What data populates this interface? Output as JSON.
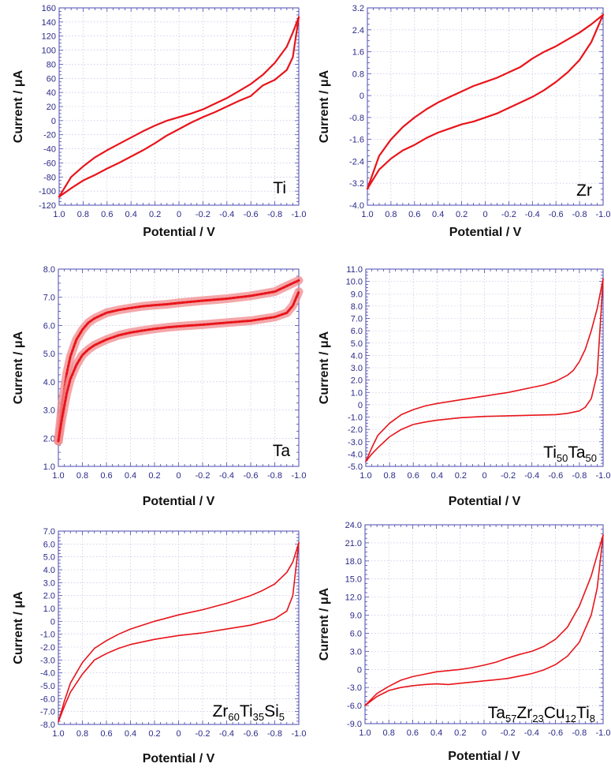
{
  "chart_data": [
    {
      "type": "line",
      "panel_label": "Ti",
      "xlabel": "Potential / V",
      "ylabel": "Current / μA",
      "xlim": [
        1.0,
        -1.0
      ],
      "ylim": [
        -120,
        160
      ],
      "x_ticks": [
        "1.0",
        "0.8",
        "0.6",
        "0.4",
        "0.2",
        "0",
        "-0.2",
        "-0.4",
        "-0.6",
        "-0.8",
        "-1.0"
      ],
      "y_ticks": [
        "-120",
        "-100",
        "-80",
        "-60",
        "-40",
        "-20",
        "0",
        "20",
        "40",
        "60",
        "80",
        "100",
        "120",
        "140",
        "160"
      ],
      "grid": true,
      "series": [
        {
          "x": [
            1.0,
            0.9,
            0.8,
            0.7,
            0.6,
            0.5,
            0.4,
            0.3,
            0.2,
            0.1,
            0.0,
            -0.1,
            -0.2,
            -0.3,
            -0.4,
            -0.5,
            -0.6,
            -0.7,
            -0.8,
            -0.9,
            -0.95,
            -1.0
          ],
          "y": [
            -108,
            -80,
            -65,
            -52,
            -42,
            -33,
            -24,
            -15,
            -7,
            0,
            5,
            10,
            16,
            24,
            32,
            42,
            52,
            65,
            82,
            105,
            125,
            147
          ]
        },
        {
          "x": [
            1.0,
            0.9,
            0.8,
            0.7,
            0.6,
            0.5,
            0.4,
            0.3,
            0.2,
            0.1,
            0.0,
            -0.1,
            -0.2,
            -0.3,
            -0.4,
            -0.5,
            -0.6,
            -0.7,
            -0.8,
            -0.9,
            -0.95,
            -1.0
          ],
          "y": [
            -108,
            -96,
            -85,
            -77,
            -68,
            -60,
            -51,
            -42,
            -32,
            -21,
            -12,
            -3,
            5,
            12,
            20,
            28,
            35,
            50,
            58,
            72,
            90,
            147
          ]
        }
      ]
    },
    {
      "type": "line",
      "panel_label": "Zr",
      "xlabel": "Potential / V",
      "ylabel": "Current / μA",
      "xlim": [
        1.0,
        -1.0
      ],
      "ylim": [
        -4.0,
        3.2
      ],
      "x_ticks": [
        "1.0",
        "0.8",
        "0.6",
        "0.4",
        "0.2",
        "0",
        "-0.2",
        "-0.4",
        "-0.6",
        "-0.8",
        "-1.0"
      ],
      "y_ticks": [
        "-4.0",
        "-3.2",
        "-2.4",
        "-1.6",
        "-0.8",
        "0",
        "0.8",
        "1.6",
        "2.4",
        "3.2"
      ],
      "grid": true,
      "series": [
        {
          "x": [
            1.0,
            0.95,
            0.9,
            0.8,
            0.7,
            0.6,
            0.5,
            0.4,
            0.3,
            0.2,
            0.1,
            0.0,
            -0.1,
            -0.2,
            -0.3,
            -0.4,
            -0.5,
            -0.6,
            -0.7,
            -0.8,
            -0.9,
            -1.0
          ],
          "y": [
            -3.4,
            -2.8,
            -2.2,
            -1.6,
            -1.15,
            -0.8,
            -0.5,
            -0.25,
            -0.05,
            0.15,
            0.35,
            0.5,
            0.65,
            0.85,
            1.05,
            1.35,
            1.6,
            1.8,
            2.05,
            2.3,
            2.6,
            2.95
          ]
        },
        {
          "x": [
            1.0,
            0.9,
            0.8,
            0.7,
            0.6,
            0.5,
            0.4,
            0.3,
            0.2,
            0.1,
            0.0,
            -0.1,
            -0.2,
            -0.3,
            -0.4,
            -0.5,
            -0.6,
            -0.7,
            -0.8,
            -0.9,
            -1.0
          ],
          "y": [
            -3.4,
            -2.7,
            -2.3,
            -2.0,
            -1.8,
            -1.55,
            -1.35,
            -1.2,
            -1.05,
            -0.95,
            -0.8,
            -0.65,
            -0.45,
            -0.25,
            -0.05,
            0.2,
            0.5,
            0.85,
            1.3,
            1.95,
            2.95
          ]
        }
      ]
    },
    {
      "type": "line",
      "panel_label": "Ta",
      "xlabel": "Potential / V",
      "ylabel": "Current / μA",
      "xlim": [
        1.0,
        -1.0
      ],
      "ylim": [
        1.0,
        8.0
      ],
      "x_ticks": [
        "1.0",
        "0.8",
        "0.6",
        "0.4",
        "0.2",
        "0",
        "-0.2",
        "-0.4",
        "-0.6",
        "-0.8",
        "-1.0"
      ],
      "y_ticks": [
        "1.0",
        "2.0",
        "3.0",
        "4.0",
        "5.0",
        "6.0",
        "7.0",
        "8.0"
      ],
      "grid": true,
      "series": [
        {
          "x": [
            1.0,
            0.97,
            0.93,
            0.9,
            0.85,
            0.8,
            0.75,
            0.7,
            0.6,
            0.5,
            0.4,
            0.3,
            0.2,
            0.1,
            0.0,
            -0.2,
            -0.4,
            -0.6,
            -0.8,
            -0.9,
            -1.0
          ],
          "y": [
            1.9,
            3.2,
            4.3,
            4.9,
            5.5,
            5.85,
            6.1,
            6.25,
            6.45,
            6.55,
            6.62,
            6.68,
            6.72,
            6.75,
            6.8,
            6.88,
            6.95,
            7.05,
            7.2,
            7.4,
            7.6
          ]
        },
        {
          "x": [
            1.0,
            0.97,
            0.93,
            0.9,
            0.85,
            0.8,
            0.75,
            0.7,
            0.6,
            0.5,
            0.4,
            0.3,
            0.2,
            0.1,
            0.0,
            -0.2,
            -0.4,
            -0.6,
            -0.8,
            -0.9,
            -0.95,
            -1.0
          ],
          "y": [
            1.9,
            2.7,
            3.6,
            4.1,
            4.6,
            4.95,
            5.15,
            5.3,
            5.5,
            5.65,
            5.75,
            5.82,
            5.88,
            5.93,
            5.97,
            6.03,
            6.1,
            6.17,
            6.3,
            6.45,
            6.7,
            7.2
          ]
        }
      ]
    },
    {
      "type": "line",
      "panel_label_parts": [
        "Ti",
        "50",
        "Ta",
        "50"
      ],
      "xlabel": "Potential / V",
      "ylabel": "Current / μA",
      "xlim": [
        1.0,
        -1.0
      ],
      "ylim": [
        -5.0,
        11.0
      ],
      "x_ticks": [
        "1.0",
        "0.8",
        "0.6",
        "0.4",
        "0.2",
        "0",
        "-0.2",
        "-0.4",
        "-0.6",
        "-0.8",
        "-1.0"
      ],
      "y_ticks": [
        "-5.0",
        "-4.0",
        "-3.0",
        "-2.0",
        "-1.0",
        "0",
        "1.0",
        "2.0",
        "3.0",
        "4.0",
        "5.0",
        "6.0",
        "7.0",
        "8.0",
        "9.0",
        "10.0",
        "11.0"
      ],
      "grid": true,
      "series": [
        {
          "x": [
            1.0,
            0.95,
            0.9,
            0.8,
            0.7,
            0.6,
            0.5,
            0.4,
            0.2,
            0.0,
            -0.2,
            -0.4,
            -0.5,
            -0.6,
            -0.7,
            -0.75,
            -0.8,
            -0.85,
            -0.9,
            -0.95,
            -1.0
          ],
          "y": [
            -4.6,
            -3.5,
            -2.5,
            -1.5,
            -0.8,
            -0.4,
            -0.1,
            0.1,
            0.4,
            0.7,
            1.0,
            1.4,
            1.6,
            1.9,
            2.4,
            2.8,
            3.5,
            4.5,
            6.0,
            7.8,
            10.2
          ]
        },
        {
          "x": [
            1.0,
            0.95,
            0.9,
            0.8,
            0.7,
            0.6,
            0.5,
            0.4,
            0.2,
            0.0,
            -0.2,
            -0.4,
            -0.6,
            -0.7,
            -0.8,
            -0.85,
            -0.9,
            -0.95,
            -1.0
          ],
          "y": [
            -4.6,
            -4.0,
            -3.5,
            -2.6,
            -2.0,
            -1.6,
            -1.4,
            -1.25,
            -1.05,
            -0.95,
            -0.9,
            -0.85,
            -0.8,
            -0.7,
            -0.5,
            -0.2,
            0.5,
            2.5,
            10.2
          ]
        }
      ]
    },
    {
      "type": "line",
      "panel_label_parts": [
        "Zr",
        "60",
        "Ti",
        "35",
        "Si",
        "5"
      ],
      "xlabel": "Potential / V",
      "ylabel": "Current / μA",
      "xlim": [
        1.0,
        -1.0
      ],
      "ylim": [
        -8.0,
        7.0
      ],
      "x_ticks": [
        "1.0",
        "0.8",
        "0.6",
        "0.4",
        "0.2",
        "0",
        "-0.2",
        "-0.4",
        "-0.6",
        "-0.8",
        "-1.0"
      ],
      "y_ticks": [
        "-8.0",
        "-7.0",
        "-6.0",
        "-5.0",
        "-4.0",
        "-3.0",
        "-2.0",
        "-1.0",
        "0",
        "1.0",
        "2.0",
        "3.0",
        "4.0",
        "5.0",
        "6.0",
        "7.0"
      ],
      "grid": true,
      "series": [
        {
          "x": [
            1.0,
            0.95,
            0.9,
            0.8,
            0.7,
            0.6,
            0.5,
            0.4,
            0.2,
            0.0,
            -0.2,
            -0.4,
            -0.6,
            -0.7,
            -0.8,
            -0.9,
            -0.95,
            -1.0
          ],
          "y": [
            -7.8,
            -6.2,
            -4.8,
            -3.2,
            -2.1,
            -1.5,
            -1.0,
            -0.6,
            0.0,
            0.5,
            0.9,
            1.4,
            2.0,
            2.4,
            2.9,
            3.8,
            4.6,
            6.1
          ]
        },
        {
          "x": [
            1.0,
            0.95,
            0.9,
            0.8,
            0.7,
            0.6,
            0.5,
            0.4,
            0.2,
            0.0,
            -0.2,
            -0.4,
            -0.6,
            -0.8,
            -0.9,
            -0.95,
            -1.0
          ],
          "y": [
            -7.8,
            -6.6,
            -5.5,
            -4.1,
            -3.0,
            -2.5,
            -2.1,
            -1.8,
            -1.4,
            -1.1,
            -0.9,
            -0.6,
            -0.3,
            0.2,
            0.8,
            2.0,
            6.1
          ]
        }
      ]
    },
    {
      "type": "line",
      "panel_label_parts": [
        "Ta",
        "57",
        "Zr",
        "23",
        "Cu",
        "12",
        "Ti",
        "8"
      ],
      "xlabel": "Potential / V",
      "ylabel": "Current / μA",
      "xlim": [
        1.0,
        -1.0
      ],
      "ylim": [
        -9.0,
        24.0
      ],
      "x_ticks": [
        "1.0",
        "0.8",
        "0.6",
        "0.4",
        "0.2",
        "0",
        "-0.2",
        "-0.4",
        "-0.6",
        "-0.8",
        "-1.0"
      ],
      "y_ticks": [
        "-9.0",
        "-6.0",
        "-3.0",
        "0",
        "3.0",
        "6.0",
        "9.0",
        "12.0",
        "15.0",
        "18.0",
        "21.0",
        "24.0"
      ],
      "grid": true,
      "series": [
        {
          "x": [
            1.0,
            0.9,
            0.8,
            0.7,
            0.6,
            0.5,
            0.4,
            0.3,
            0.2,
            0.1,
            0.0,
            -0.1,
            -0.2,
            -0.3,
            -0.4,
            -0.5,
            -0.6,
            -0.7,
            -0.8,
            -0.9,
            -0.95,
            -1.0
          ],
          "y": [
            -6.0,
            -4.0,
            -2.8,
            -1.8,
            -1.2,
            -0.8,
            -0.4,
            -0.2,
            0.0,
            0.3,
            0.7,
            1.2,
            1.9,
            2.5,
            3.0,
            3.8,
            5.0,
            7.0,
            10.5,
            15.5,
            19.0,
            22.3
          ]
        },
        {
          "x": [
            1.0,
            0.9,
            0.8,
            0.7,
            0.6,
            0.5,
            0.4,
            0.3,
            0.2,
            0.1,
            0.0,
            -0.1,
            -0.2,
            -0.3,
            -0.4,
            -0.5,
            -0.6,
            -0.7,
            -0.8,
            -0.9,
            -0.95,
            -1.0
          ],
          "y": [
            -6.0,
            -4.5,
            -3.5,
            -3.0,
            -2.7,
            -2.5,
            -2.4,
            -2.5,
            -2.3,
            -2.1,
            -1.9,
            -1.7,
            -1.5,
            -1.1,
            -0.7,
            -0.1,
            0.8,
            2.2,
            4.5,
            9.0,
            13.5,
            22.3
          ]
        }
      ]
    }
  ]
}
